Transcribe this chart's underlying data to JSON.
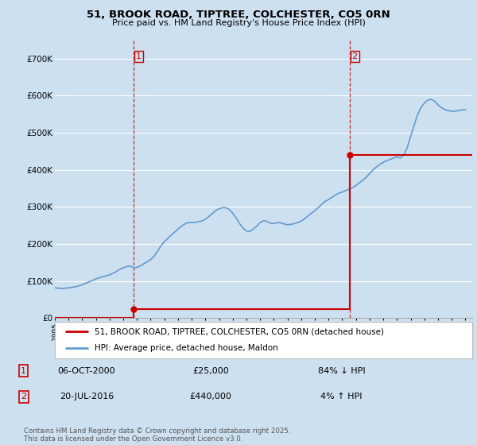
{
  "title": "51, BROOK ROAD, TIPTREE, COLCHESTER, CO5 0RN",
  "subtitle": "Price paid vs. HM Land Registry's House Price Index (HPI)",
  "ylim": [
    0,
    750000
  ],
  "yticks": [
    0,
    100000,
    200000,
    300000,
    400000,
    500000,
    600000,
    700000
  ],
  "ytick_labels": [
    "£0",
    "£100K",
    "£200K",
    "£300K",
    "£400K",
    "£500K",
    "£600K",
    "£700K"
  ],
  "xlim_start": 1995.0,
  "xlim_end": 2025.5,
  "background_color": "#cce0f0",
  "plot_bg_color": "#cce0f0",
  "grid_color": "#ffffff",
  "transaction1_x": 2000.76,
  "transaction1_y": 25000,
  "transaction2_x": 2016.55,
  "transaction2_y": 440000,
  "legend_label1": "51, BROOK ROAD, TIPTREE, COLCHESTER, CO5 0RN (detached house)",
  "legend_label2": "HPI: Average price, detached house, Maldon",
  "anno1_label": "1",
  "anno1_date": "06-OCT-2000",
  "anno1_price": "£25,000",
  "anno1_hpi": "84% ↓ HPI",
  "anno2_label": "2",
  "anno2_date": "20-JUL-2016",
  "anno2_price": "£440,000",
  "anno2_hpi": "4% ↑ HPI",
  "footer": "Contains HM Land Registry data © Crown copyright and database right 2025.\nThis data is licensed under the Open Government Licence v3.0.",
  "red_line_color": "#cc0000",
  "blue_line_color": "#6699cc",
  "hpi_data_x": [
    1995.0,
    1995.25,
    1995.5,
    1995.75,
    1996.0,
    1996.25,
    1996.5,
    1996.75,
    1997.0,
    1997.25,
    1997.5,
    1997.75,
    1998.0,
    1998.25,
    1998.5,
    1998.75,
    1999.0,
    1999.25,
    1999.5,
    1999.75,
    2000.0,
    2000.25,
    2000.5,
    2000.75,
    2001.0,
    2001.25,
    2001.5,
    2001.75,
    2002.0,
    2002.25,
    2002.5,
    2002.75,
    2003.0,
    2003.25,
    2003.5,
    2003.75,
    2004.0,
    2004.25,
    2004.5,
    2004.75,
    2005.0,
    2005.25,
    2005.5,
    2005.75,
    2006.0,
    2006.25,
    2006.5,
    2006.75,
    2007.0,
    2007.25,
    2007.5,
    2007.75,
    2008.0,
    2008.25,
    2008.5,
    2008.75,
    2009.0,
    2009.25,
    2009.5,
    2009.75,
    2010.0,
    2010.25,
    2010.5,
    2010.75,
    2011.0,
    2011.25,
    2011.5,
    2011.75,
    2012.0,
    2012.25,
    2012.5,
    2012.75,
    2013.0,
    2013.25,
    2013.5,
    2013.75,
    2014.0,
    2014.25,
    2014.5,
    2014.75,
    2015.0,
    2015.25,
    2015.5,
    2015.75,
    2016.0,
    2016.25,
    2016.5,
    2016.75,
    2017.0,
    2017.25,
    2017.5,
    2017.75,
    2018.0,
    2018.25,
    2018.5,
    2018.75,
    2019.0,
    2019.25,
    2019.5,
    2019.75,
    2020.0,
    2020.25,
    2020.5,
    2020.75,
    2021.0,
    2021.25,
    2021.5,
    2021.75,
    2022.0,
    2022.25,
    2022.5,
    2022.75,
    2023.0,
    2023.25,
    2023.5,
    2023.75,
    2024.0,
    2024.25,
    2024.5,
    2024.75,
    2025.0
  ],
  "hpi_data_y": [
    82000,
    81000,
    80000,
    81000,
    82000,
    83000,
    85000,
    87000,
    90000,
    94000,
    98000,
    102000,
    106000,
    109000,
    112000,
    114000,
    117000,
    121000,
    126000,
    132000,
    136000,
    139000,
    141000,
    136000,
    137000,
    141000,
    147000,
    152000,
    158000,
    167000,
    180000,
    195000,
    206000,
    215000,
    224000,
    232000,
    240000,
    248000,
    254000,
    258000,
    258000,
    258000,
    260000,
    262000,
    267000,
    274000,
    282000,
    290000,
    295000,
    298000,
    298000,
    293000,
    283000,
    270000,
    255000,
    243000,
    235000,
    234000,
    240000,
    248000,
    258000,
    263000,
    261000,
    256000,
    255000,
    258000,
    257000,
    254000,
    252000,
    253000,
    255000,
    258000,
    262000,
    268000,
    276000,
    283000,
    290000,
    298000,
    307000,
    315000,
    320000,
    326000,
    332000,
    337000,
    340000,
    344000,
    348000,
    352000,
    358000,
    365000,
    372000,
    380000,
    390000,
    400000,
    408000,
    415000,
    420000,
    425000,
    428000,
    432000,
    435000,
    432000,
    440000,
    460000,
    490000,
    520000,
    548000,
    568000,
    580000,
    588000,
    590000,
    585000,
    575000,
    568000,
    562000,
    560000,
    558000,
    558000,
    560000,
    562000,
    562000
  ]
}
